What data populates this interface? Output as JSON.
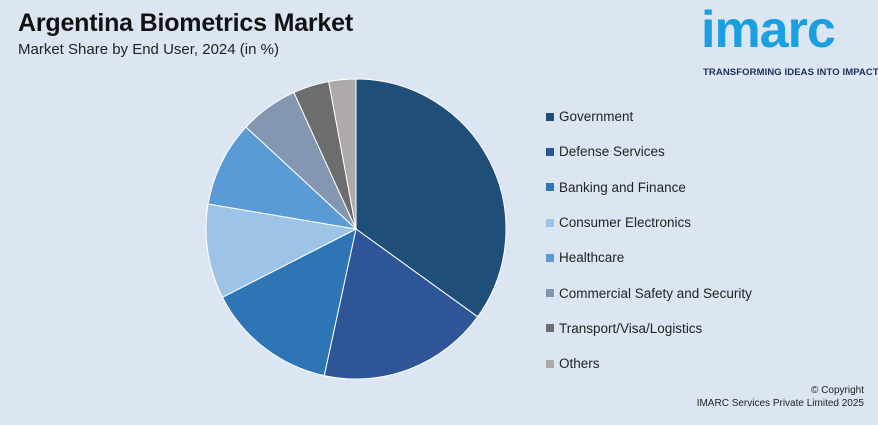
{
  "chart_data": {
    "type": "pie",
    "title": "Argentina Biometrics Market",
    "subtitle": "Market Share by End User, 2024 (in %)",
    "legend_position": "right",
    "slices": [
      {
        "label": "Government",
        "value": 36.0,
        "color": "#1f4e79"
      },
      {
        "label": "Defense Services",
        "value": 19.0,
        "color": "#2e5597"
      },
      {
        "label": "Banking and Finance",
        "value": 14.5,
        "color": "#2e75b6"
      },
      {
        "label": "Consumer Electronics",
        "value": 10.5,
        "color": "#9dc3e6"
      },
      {
        "label": "Healthcare",
        "value": 9.5,
        "color": "#5b9bd5"
      },
      {
        "label": "Commercial Safety and Security",
        "value": 6.5,
        "color": "#8497b0"
      },
      {
        "label": "Transport/Visa/Logistics",
        "value": 4.0,
        "color": "#6d6d6d"
      },
      {
        "label": "Others",
        "value": 3.0,
        "color": "#aeaaaa"
      }
    ]
  },
  "logo": {
    "word": "imarc",
    "tagline": "TRANSFORMING IDEAS INTO IMPACT"
  },
  "copyright": {
    "line1": "© Copyright",
    "line2": "IMARC Services Private Limited 2025"
  }
}
